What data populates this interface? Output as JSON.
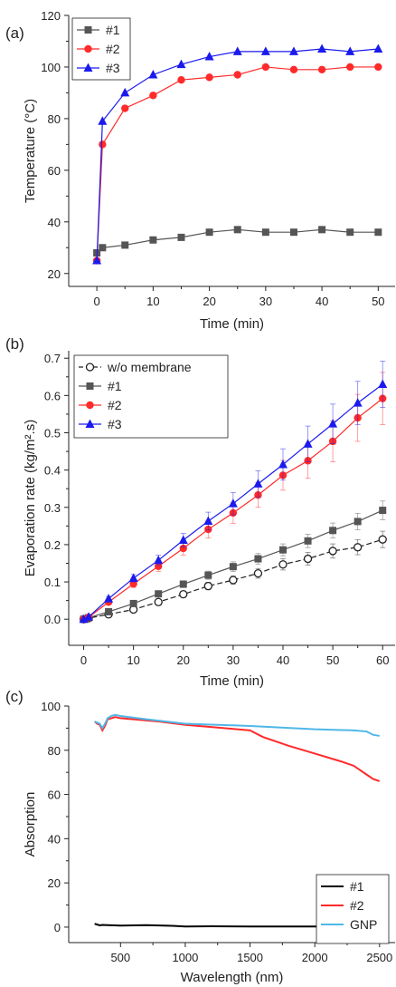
{
  "chart_data": [
    {
      "panel_label": "(a)",
      "type": "line",
      "xlabel": "Time (min)",
      "ylabel": "Temperature (°C)",
      "xlim": [
        -5,
        53
      ],
      "ylim": [
        15,
        120
      ],
      "xticks": [
        0,
        10,
        20,
        30,
        40,
        50
      ],
      "yticks": [
        20,
        40,
        60,
        80,
        100,
        120
      ],
      "legend_position": "top-left",
      "series": [
        {
          "name": "#1",
          "color": "#555555",
          "marker": "square",
          "x": [
            0,
            1,
            5,
            10,
            15,
            20,
            25,
            30,
            35,
            40,
            45,
            50
          ],
          "y": [
            28,
            30,
            31,
            33,
            34,
            36,
            37,
            36,
            36,
            37,
            36,
            36
          ]
        },
        {
          "name": "#2",
          "color": "#ff2a2a",
          "marker": "circle",
          "x": [
            0,
            1,
            5,
            10,
            15,
            20,
            25,
            30,
            35,
            40,
            45,
            50
          ],
          "y": [
            25,
            70,
            84,
            89,
            95,
            96,
            97,
            100,
            99,
            99,
            100,
            100
          ]
        },
        {
          "name": "#3",
          "color": "#1a1aee",
          "marker": "triangle",
          "x": [
            0,
            1,
            5,
            10,
            15,
            20,
            25,
            30,
            35,
            40,
            45,
            50
          ],
          "y": [
            25,
            79,
            90,
            97,
            101,
            104,
            106,
            106,
            106,
            107,
            106,
            107
          ]
        }
      ]
    },
    {
      "panel_label": "(b)",
      "type": "line",
      "xlabel": "Time (min)",
      "ylabel": "Evaporation rate (kg/m².s)",
      "xlim": [
        -3,
        62.5
      ],
      "ylim": [
        -0.07,
        0.72
      ],
      "xticks": [
        0,
        10,
        20,
        30,
        40,
        50,
        60
      ],
      "yticks": [
        0.0,
        0.1,
        0.2,
        0.3,
        0.4,
        0.5,
        0.6,
        0.7
      ],
      "ytick_labels": [
        "0.0",
        "0.1",
        "0.2",
        "0.3",
        "0.4",
        "0.5",
        "0.6",
        "0.7"
      ],
      "legend_position": "top-left",
      "series": [
        {
          "name": "w/o membrane",
          "color": "#222222",
          "marker": "open-circle",
          "dashed": true,
          "x": [
            0,
            1,
            5,
            10,
            15,
            20,
            25,
            30,
            35,
            40,
            45,
            50,
            55,
            60
          ],
          "y": [
            0,
            0.003,
            0.013,
            0.026,
            0.046,
            0.067,
            0.089,
            0.105,
            0.123,
            0.147,
            0.162,
            0.183,
            0.193,
            0.214
          ],
          "err": [
            0,
            0,
            0.004,
            0.006,
            0.007,
            0.008,
            0.01,
            0.011,
            0.013,
            0.015,
            0.017,
            0.019,
            0.02,
            0.022
          ]
        },
        {
          "name": "#1",
          "color": "#555555",
          "marker": "square",
          "x": [
            0,
            1,
            5,
            10,
            15,
            20,
            25,
            30,
            35,
            40,
            45,
            50,
            55,
            60
          ],
          "y": [
            0,
            0.004,
            0.02,
            0.042,
            0.068,
            0.094,
            0.118,
            0.141,
            0.162,
            0.186,
            0.21,
            0.238,
            0.262,
            0.292
          ],
          "err": [
            0,
            0,
            0.004,
            0.005,
            0.007,
            0.009,
            0.011,
            0.013,
            0.014,
            0.016,
            0.018,
            0.02,
            0.022,
            0.025
          ]
        },
        {
          "name": "#2",
          "color": "#ff2a2a",
          "marker": "circle",
          "x": [
            0,
            1,
            5,
            10,
            15,
            20,
            25,
            30,
            35,
            40,
            45,
            50,
            55,
            60
          ],
          "y": [
            0,
            0.005,
            0.046,
            0.095,
            0.142,
            0.19,
            0.241,
            0.285,
            0.333,
            0.386,
            0.425,
            0.477,
            0.54,
            0.592
          ],
          "err": [
            0,
            0,
            0.006,
            0.01,
            0.014,
            0.018,
            0.023,
            0.028,
            0.033,
            0.04,
            0.047,
            0.055,
            0.063,
            0.07
          ]
        },
        {
          "name": "#3",
          "color": "#1a1aee",
          "marker": "triangle",
          "x": [
            0,
            1,
            5,
            10,
            15,
            20,
            25,
            30,
            35,
            40,
            45,
            50,
            55,
            60
          ],
          "y": [
            0,
            0.006,
            0.055,
            0.11,
            0.158,
            0.212,
            0.263,
            0.31,
            0.363,
            0.415,
            0.47,
            0.524,
            0.58,
            0.63
          ],
          "err": [
            0,
            0,
            0.006,
            0.01,
            0.014,
            0.018,
            0.024,
            0.03,
            0.035,
            0.042,
            0.048,
            0.053,
            0.058,
            0.062
          ]
        }
      ]
    },
    {
      "panel_label": "(c)",
      "type": "line",
      "xlabel": "Wavelength (nm)",
      "ylabel": "Absorption",
      "xlim": [
        100,
        2620
      ],
      "ylim": [
        -7,
        100
      ],
      "xticks": [
        500,
        1000,
        1500,
        2000,
        2500
      ],
      "yticks": [
        0,
        20,
        40,
        60,
        80,
        100
      ],
      "legend_position": "bottom-right",
      "series": [
        {
          "name": "#1",
          "color": "#000000",
          "x": [
            300,
            340,
            360,
            400,
            500,
            700,
            900,
            1000,
            1200,
            1500,
            2000,
            2500
          ],
          "y": [
            1.5,
            0.8,
            1.0,
            0.9,
            0.7,
            0.9,
            0.6,
            0.3,
            0.4,
            0.3,
            0.3,
            0.3
          ]
        },
        {
          "name": "#2",
          "color": "#ff2a2a",
          "x": [
            300,
            320,
            340,
            360,
            380,
            400,
            430,
            460,
            500,
            600,
            800,
            1000,
            1200,
            1400,
            1500,
            1600,
            1800,
            2000,
            2200,
            2300,
            2400,
            2450,
            2500
          ],
          "y": [
            93,
            92,
            91.5,
            89,
            91,
            94,
            94.5,
            95,
            94.5,
            94,
            93,
            91.5,
            90.5,
            89.5,
            89,
            86,
            82,
            78.5,
            75,
            73,
            69,
            67,
            66
          ]
        },
        {
          "name": "GNP",
          "color": "#4fb7e8",
          "x": [
            300,
            320,
            340,
            360,
            380,
            400,
            430,
            460,
            500,
            700,
            1000,
            1500,
            2000,
            2300,
            2400,
            2450,
            2500
          ],
          "y": [
            93,
            92.5,
            92,
            90,
            92,
            94.5,
            95.5,
            96,
            95.5,
            94,
            92,
            91,
            89.5,
            89,
            88.5,
            87,
            86.5
          ]
        }
      ]
    }
  ]
}
